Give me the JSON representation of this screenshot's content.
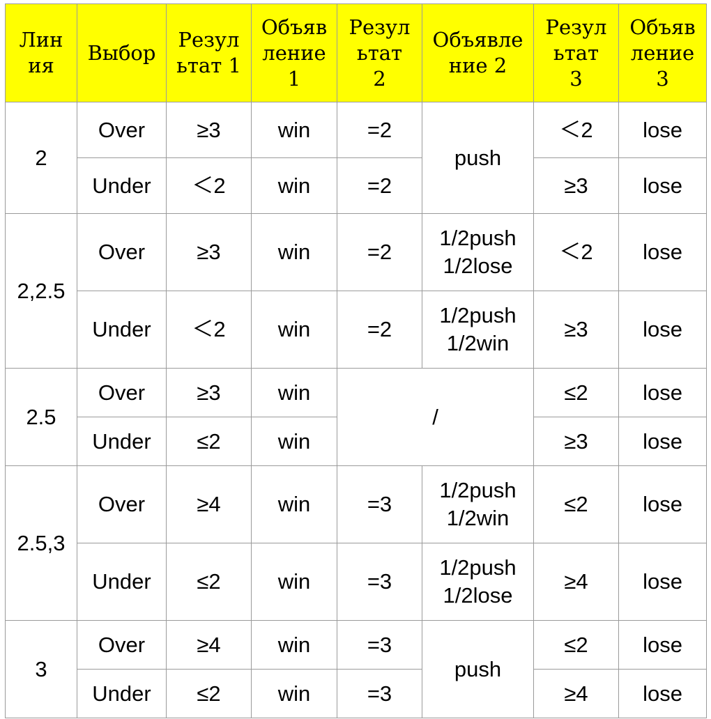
{
  "headers": [
    "Лин\nия",
    "Выбор",
    "Резул\nьтат 1",
    "Объяв\nление\n1",
    "Резул\nьтат\n2",
    "Объявле\nние 2",
    "Резул\nьтат\n3",
    "Объяв\nление\n3"
  ],
  "groups": [
    {
      "line": "2",
      "rows": [
        {
          "choice": "Over",
          "res1": "≥3",
          "ann1": "win",
          "res2": "=2",
          "ann2": "push",
          "res3": "＜2",
          "ann3": "lose"
        },
        {
          "choice": "Under",
          "res1": "＜2",
          "ann1": "win",
          "res2": "=2",
          "res3": "≥3",
          "ann3": "lose"
        }
      ]
    },
    {
      "line": "2,2.5",
      "rows": [
        {
          "choice": "Over",
          "res1": "≥3",
          "ann1": "win",
          "res2": "=2",
          "ann2": "1/2push\n1/2lose",
          "res3": "＜2",
          "ann3": "lose"
        },
        {
          "choice": "Under",
          "res1": "＜2",
          "ann1": "win",
          "res2": "=2",
          "ann2": "1/2push\n1/2win",
          "res3": "≥3",
          "ann3": "lose"
        }
      ]
    },
    {
      "line": "2.5",
      "rows": [
        {
          "choice": "Over",
          "res1": "≥3",
          "ann1": "win",
          "res2_ann2": "/",
          "res3": "≤2",
          "ann3": "lose"
        },
        {
          "choice": "Under",
          "res1": "≤2",
          "ann1": "win",
          "res3": "≥3",
          "ann3": "lose"
        }
      ]
    },
    {
      "line": "2.5,3",
      "rows": [
        {
          "choice": "Over",
          "res1": "≥4",
          "ann1": "win",
          "res2": "=3",
          "ann2": "1/2push\n1/2win",
          "res3": "≤2",
          "ann3": "lose"
        },
        {
          "choice": "Under",
          "res1": "≤2",
          "ann1": "win",
          "res2": "=3",
          "ann2": "1/2push\n1/2lose",
          "res3": "≥4",
          "ann3": "lose"
        }
      ]
    },
    {
      "line": "3",
      "rows": [
        {
          "choice": "Over",
          "res1": "≥4",
          "ann1": "win",
          "res2": "=3",
          "ann2": "push",
          "res3": "≤2",
          "ann3": "lose"
        },
        {
          "choice": "Under",
          "res1": "≤2",
          "ann1": "win",
          "res2": "=3",
          "res3": "≥4",
          "ann3": "lose"
        }
      ]
    }
  ],
  "colors": {
    "header_bg": "#ffff00",
    "border": "#9a9a9a"
  }
}
